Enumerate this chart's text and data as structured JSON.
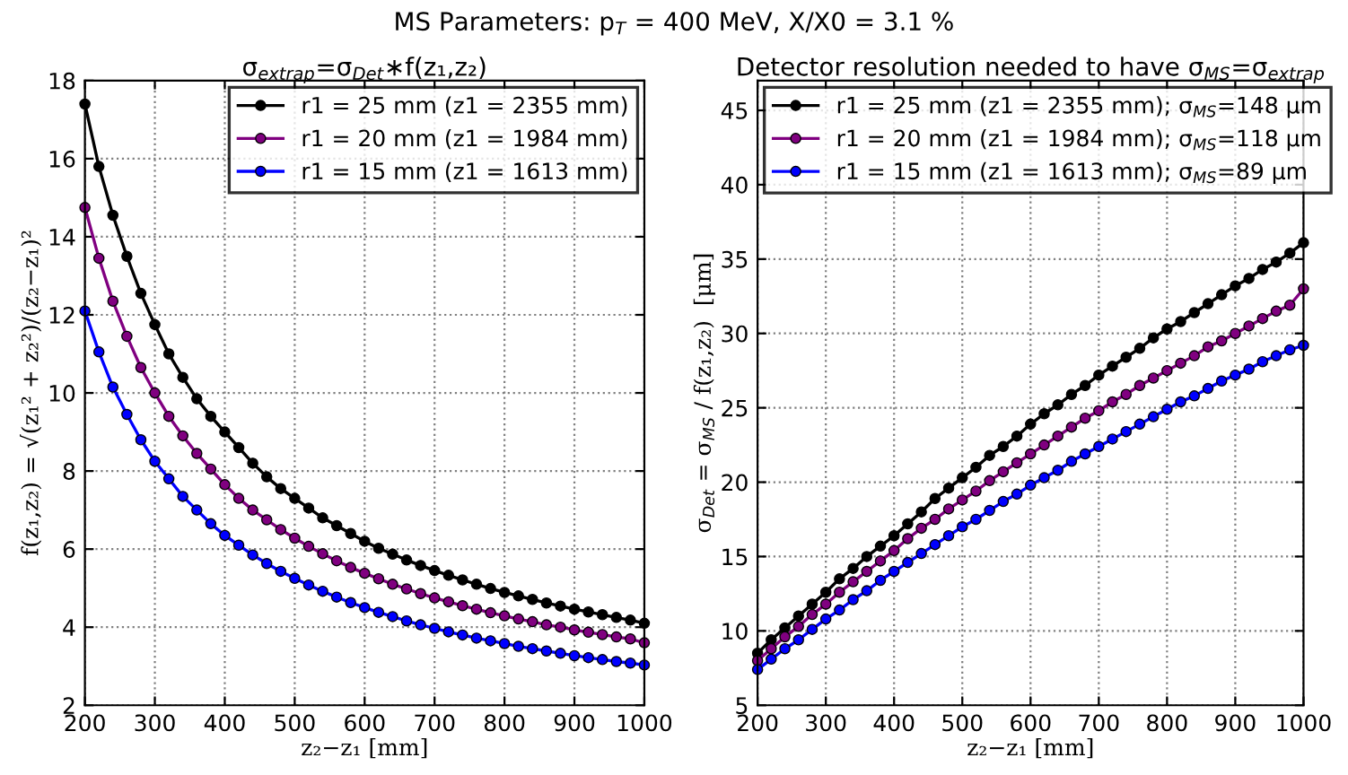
{
  "chart_data": [
    {
      "type": "line",
      "title": "σ$_{extrap}$=σ$_{Det}$∗f(z₁,z₂)",
      "xlabel": "z₂−z₁ [mm]",
      "ylabel": "f(z₁,z₂) = √(z₁² + z₂²)/(z₂−z₁)²",
      "annotations": [
        "MS Parameters: p$_{T}$ = 400 MeV, X/X0 = 3.1 %"
      ],
      "x": [
        200,
        220,
        240,
        260,
        280,
        300,
        320,
        340,
        360,
        380,
        400,
        420,
        440,
        460,
        480,
        500,
        520,
        540,
        560,
        580,
        600,
        620,
        640,
        660,
        680,
        700,
        720,
        740,
        760,
        780,
        800,
        820,
        840,
        860,
        880,
        900,
        920,
        940,
        960,
        980,
        1000
      ],
      "series": [
        {
          "name": "r1 = 25 mm (z1 = 2355 mm)",
          "color": "#000000",
          "values": [
            17.4,
            15.8,
            14.55,
            13.5,
            12.55,
            11.75,
            11.0,
            10.4,
            9.85,
            9.4,
            9.0,
            8.6,
            8.2,
            7.85,
            7.55,
            7.3,
            7.05,
            6.8,
            6.6,
            6.4,
            6.2,
            6.02,
            5.87,
            5.72,
            5.58,
            5.45,
            5.33,
            5.21,
            5.1,
            4.99,
            4.89,
            4.8,
            4.71,
            4.62,
            4.54,
            4.46,
            4.39,
            4.32,
            4.25,
            4.18,
            4.1
          ]
        },
        {
          "name": "r1 = 20 mm (z1 = 1984 mm)",
          "color": "#800080",
          "values": [
            14.75,
            13.45,
            12.35,
            11.45,
            10.65,
            10.0,
            9.4,
            8.9,
            8.45,
            8.05,
            7.65,
            7.3,
            7.0,
            6.75,
            6.5,
            6.28,
            6.07,
            5.88,
            5.7,
            5.53,
            5.38,
            5.24,
            5.1,
            4.98,
            4.86,
            4.75,
            4.65,
            4.55,
            4.46,
            4.37,
            4.29,
            4.21,
            4.14,
            4.06,
            4.0,
            3.93,
            3.87,
            3.81,
            3.75,
            3.7,
            3.6
          ]
        },
        {
          "name": "r1 = 15 mm (z1 = 1613 mm)",
          "color": "#0000ff",
          "values": [
            12.1,
            11.05,
            10.15,
            9.45,
            8.8,
            8.25,
            7.8,
            7.35,
            7.0,
            6.65,
            6.35,
            6.1,
            5.85,
            5.63,
            5.43,
            5.25,
            5.08,
            4.92,
            4.77,
            4.63,
            4.5,
            4.38,
            4.27,
            4.16,
            4.06,
            3.97,
            3.88,
            3.8,
            3.72,
            3.65,
            3.58,
            3.51,
            3.45,
            3.39,
            3.33,
            3.27,
            3.22,
            3.17,
            3.12,
            3.08,
            3.03
          ]
        }
      ],
      "xlim": [
        200,
        1000
      ],
      "ylim": [
        2,
        18
      ],
      "xticks": [
        200,
        300,
        400,
        500,
        600,
        700,
        800,
        900,
        1000
      ],
      "yticks": [
        2,
        4,
        6,
        8,
        10,
        12,
        14,
        16,
        18
      ],
      "grid": true,
      "legend": "top right",
      "marker": "circle",
      "line_style": "solid"
    },
    {
      "type": "line",
      "title": "Detector resolution needed to have σ$_{MS}$=σ$_{extrap}$",
      "xlabel": "z₂−z₁ [mm]",
      "ylabel": "σ$_{Det}$ = σ$_{MS}$ / f(z₁,z₂)  [μm]",
      "x": [
        200,
        220,
        240,
        260,
        280,
        300,
        320,
        340,
        360,
        380,
        400,
        420,
        440,
        460,
        480,
        500,
        520,
        540,
        560,
        580,
        600,
        620,
        640,
        660,
        680,
        700,
        720,
        740,
        760,
        780,
        800,
        820,
        840,
        860,
        880,
        900,
        920,
        940,
        960,
        980,
        1000
      ],
      "series": [
        {
          "name": "r1 = 25 mm (z1 = 2355 mm); σ$_{MS}$=148 μm",
          "color": "#000000",
          "values": [
            8.5,
            9.4,
            10.2,
            11.0,
            11.8,
            12.6,
            13.5,
            14.2,
            15.0,
            15.7,
            16.4,
            17.2,
            18.0,
            18.9,
            19.6,
            20.3,
            21.0,
            21.8,
            22.4,
            23.1,
            23.9,
            24.6,
            25.2,
            25.9,
            26.5,
            27.2,
            27.8,
            28.4,
            29.0,
            29.7,
            30.3,
            30.8,
            31.4,
            32.0,
            32.6,
            33.2,
            33.7,
            34.3,
            34.8,
            35.4,
            36.1
          ]
        },
        {
          "name": "r1 = 20 mm (z1 = 1984 mm); σ$_{MS}$=118 μm",
          "color": "#800080",
          "values": [
            8.0,
            8.8,
            9.6,
            10.3,
            11.1,
            11.8,
            12.6,
            13.3,
            14.0,
            14.7,
            15.4,
            16.2,
            16.9,
            17.5,
            18.2,
            18.8,
            19.4,
            20.1,
            20.7,
            21.3,
            21.9,
            22.5,
            23.1,
            23.7,
            24.3,
            24.8,
            25.4,
            25.9,
            26.5,
            27.0,
            27.5,
            28.0,
            28.5,
            29.1,
            29.5,
            30.0,
            30.5,
            31.0,
            31.5,
            31.9,
            33.0
          ]
        },
        {
          "name": "r1 = 15 mm (z1 = 1613 mm); σ$_{MS}$=89 μm",
          "color": "#0000ff",
          "values": [
            7.4,
            8.1,
            8.8,
            9.4,
            10.1,
            10.8,
            11.4,
            12.1,
            12.7,
            13.4,
            14.0,
            14.6,
            15.2,
            15.8,
            16.4,
            17.0,
            17.5,
            18.1,
            18.7,
            19.2,
            19.8,
            20.3,
            20.8,
            21.4,
            21.9,
            22.4,
            22.9,
            23.4,
            23.9,
            24.4,
            24.9,
            25.4,
            25.8,
            26.3,
            26.8,
            27.2,
            27.6,
            28.1,
            28.5,
            28.9,
            29.2
          ]
        }
      ],
      "xlim": [
        200,
        1000
      ],
      "ylim": [
        5,
        47
      ],
      "xticks": [
        200,
        300,
        400,
        500,
        600,
        700,
        800,
        900,
        1000
      ],
      "yticks": [
        5,
        10,
        15,
        20,
        25,
        30,
        35,
        40,
        45
      ],
      "grid": true,
      "legend": "top left",
      "marker": "circle",
      "line_style": "solid"
    }
  ]
}
